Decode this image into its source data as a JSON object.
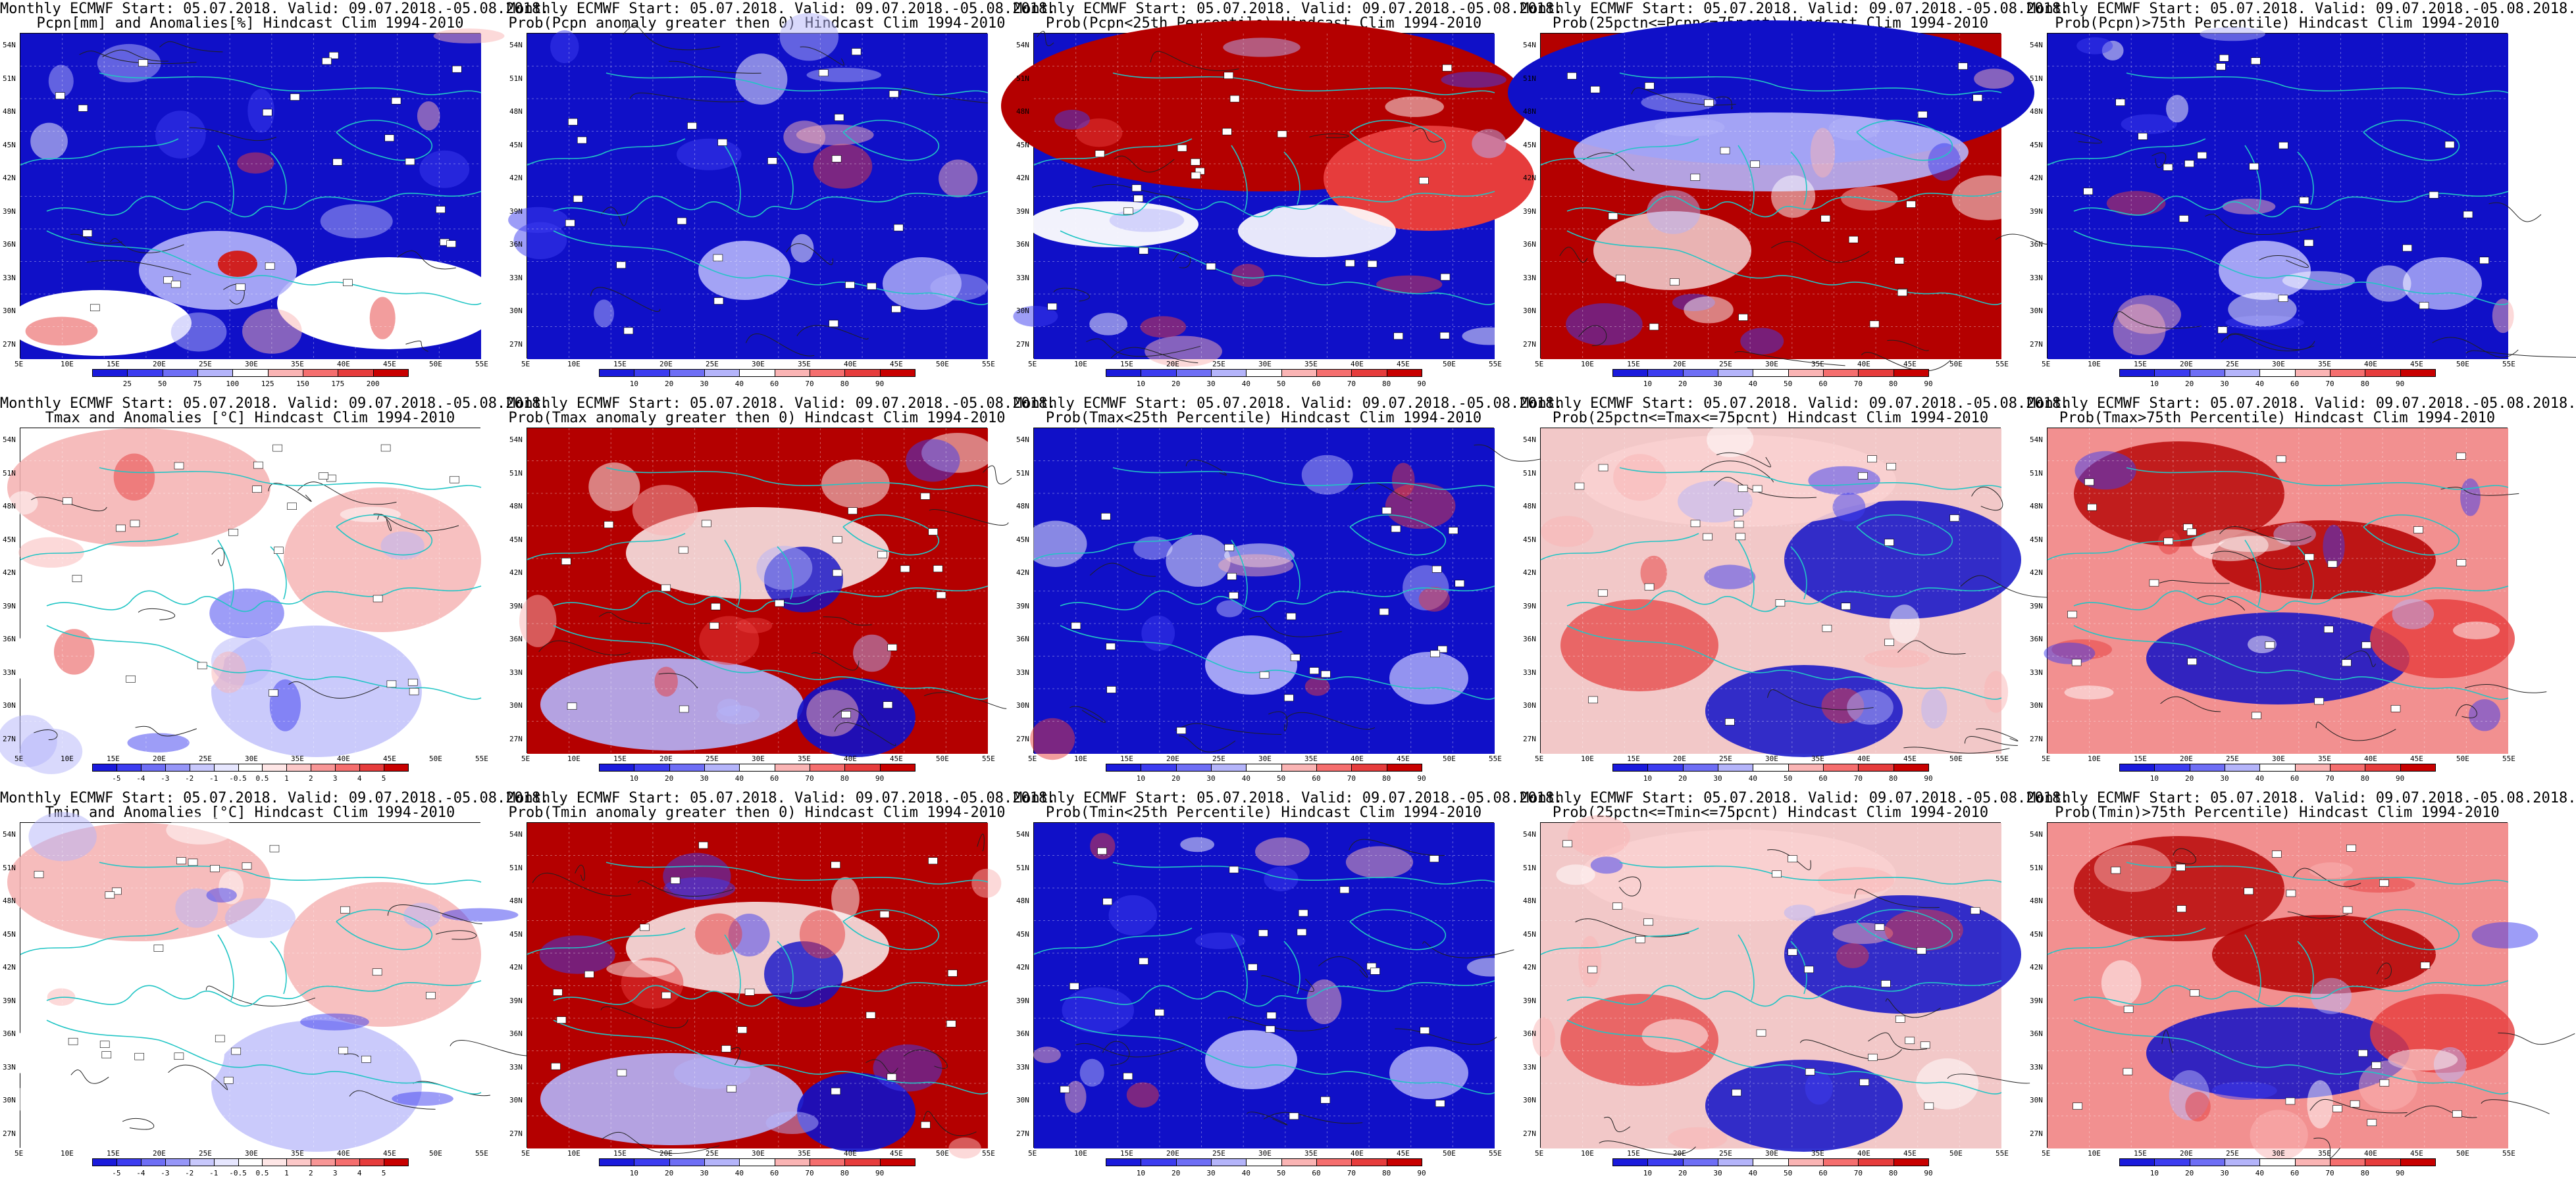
{
  "panels": [
    {
      "id": "r1c1",
      "title1": "Monthly ECMWF Start: 05.07.2018. Valid: 09.07.2018.-05.08.2018.",
      "title2": "Pcpn[mm] and Anomalies[%] Hindcast Clim 1994-2010",
      "scheme": "mostly-blue-white",
      "colorbar": [
        "25",
        "50",
        "75",
        "100",
        "125",
        "150",
        "175",
        "200"
      ],
      "cbar_colors": [
        "#1a1adc",
        "#3c3cf0",
        "#6e6ef5",
        "#b4b4fa",
        "#ffffff",
        "#fab4b4",
        "#f56e6e",
        "#e63c3c",
        "#c80000"
      ]
    },
    {
      "id": "r1c2",
      "title1": "Monthly ECMWF Start: 05.07.2018. Valid: 09.07.2018.-05.08.2018.",
      "title2": "Prob(Pcpn anomaly greater then 0) Hindcast Clim 1994-2010",
      "scheme": "mostly-blue",
      "colorbar": [
        "10",
        "20",
        "30",
        "40",
        "60",
        "70",
        "80",
        "90"
      ],
      "cbar_colors": [
        "#1a1adc",
        "#3c3cf0",
        "#6e6ef5",
        "#b4b4fa",
        "#ffffff",
        "#fab4b4",
        "#f56e6e",
        "#e63c3c",
        "#c80000"
      ]
    },
    {
      "id": "r1c3",
      "title1": "Monthly ECMWF Start: 05.07.2018. Valid: 09.07.2018.-05.08.2018.",
      "title2": "Prob(Pcpn<25th Percentile) Hindcast Clim 1994-2010",
      "scheme": "red-top-blue-bottom",
      "colorbar": [
        "10",
        "20",
        "30",
        "40",
        "50",
        "60",
        "70",
        "80",
        "90"
      ],
      "cbar_colors": [
        "#1a1adc",
        "#3c3cf0",
        "#6e6ef5",
        "#b4b4fa",
        "#ffffff",
        "#fab4b4",
        "#f56e6e",
        "#e63c3c",
        "#c80000"
      ]
    },
    {
      "id": "r1c4",
      "title1": "Monthly ECMWF Start: 05.07.2018. Valid: 09.07.2018.-05.08.2018.",
      "title2": "Prob(25pctn<=Pcpn<=75pcnt) Hindcast Clim 1994-2010",
      "scheme": "blue-top-red-bottom",
      "colorbar": [
        "10",
        "20",
        "30",
        "40",
        "50",
        "60",
        "70",
        "80",
        "90"
      ],
      "cbar_colors": [
        "#1a1adc",
        "#3c3cf0",
        "#6e6ef5",
        "#b4b4fa",
        "#ffffff",
        "#fab4b4",
        "#f56e6e",
        "#e63c3c",
        "#c80000"
      ]
    },
    {
      "id": "r1c5",
      "title1": "Monthly ECMWF Start: 05.07.2018. Valid: 09.07.2018.-05.08.2018.",
      "title2": "Prob(Pcpn)>75th Percentile) Hindcast Clim 1994-2010",
      "scheme": "mostly-blue",
      "colorbar": [
        "10",
        "20",
        "30",
        "40",
        "60",
        "70",
        "80",
        "90"
      ],
      "cbar_colors": [
        "#1a1adc",
        "#3c3cf0",
        "#6e6ef5",
        "#b4b4fa",
        "#ffffff",
        "#fab4b4",
        "#f56e6e",
        "#e63c3c",
        "#c80000"
      ]
    },
    {
      "id": "r2c1",
      "title1": "Monthly ECMWF Start: 05.07.2018. Valid: 09.07.2018.-05.08.2018.",
      "title2": "Tmax and Anomalies [°C] Hindcast Clim 1994-2010",
      "scheme": "light-red-white",
      "colorbar": [
        "-5",
        "-4",
        "-3",
        "-2",
        "-1",
        "-0.5",
        "0.5",
        "1",
        "2",
        "3",
        "4",
        "5"
      ],
      "cbar_colors": [
        "#1a1adc",
        "#3c3cf0",
        "#6e6ef5",
        "#9696f8",
        "#c8c8fc",
        "#e6e6fe",
        "#ffffff",
        "#fee6e6",
        "#fcc8c8",
        "#f89696",
        "#f56e6e",
        "#e63c3c",
        "#c80000"
      ]
    },
    {
      "id": "r2c2",
      "title1": "Monthly ECMWF Start: 05.07.2018. Valid: 09.07.2018.-05.08.2018.",
      "title2": "Prob(Tmax anomaly greater then 0) Hindcast Clim 1994-2010",
      "scheme": "mostly-red",
      "colorbar": [
        "10",
        "20",
        "30",
        "40",
        "60",
        "70",
        "80",
        "90"
      ],
      "cbar_colors": [
        "#1a1adc",
        "#3c3cf0",
        "#6e6ef5",
        "#b4b4fa",
        "#ffffff",
        "#fab4b4",
        "#f56e6e",
        "#e63c3c",
        "#c80000"
      ]
    },
    {
      "id": "r2c3",
      "title1": "Monthly ECMWF Start: 05.07.2018. Valid: 09.07.2018.-05.08.2018.",
      "title2": "Prob(Tmax<25th Percentile) Hindcast Clim 1994-2010",
      "scheme": "mostly-blue",
      "colorbar": [
        "10",
        "20",
        "30",
        "40",
        "50",
        "60",
        "70",
        "80",
        "90"
      ],
      "cbar_colors": [
        "#1a1adc",
        "#3c3cf0",
        "#6e6ef5",
        "#b4b4fa",
        "#ffffff",
        "#fab4b4",
        "#f56e6e",
        "#e63c3c",
        "#c80000"
      ]
    },
    {
      "id": "r2c4",
      "title1": "Monthly ECMWF Start: 05.07.2018. Valid: 09.07.2018.-05.08.2018.",
      "title2": "Prob(25pctn<=Tmax<=75pcnt) Hindcast Clim 1994-2010",
      "scheme": "mixed",
      "colorbar": [
        "10",
        "20",
        "30",
        "40",
        "50",
        "60",
        "70",
        "80",
        "90"
      ],
      "cbar_colors": [
        "#1a1adc",
        "#3c3cf0",
        "#6e6ef5",
        "#b4b4fa",
        "#ffffff",
        "#fab4b4",
        "#f56e6e",
        "#e63c3c",
        "#c80000"
      ]
    },
    {
      "id": "r2c5",
      "title1": "Monthly ECMWF Start: 05.07.2018. Valid: 09.07.2018.-05.08.2018.",
      "title2": "Prob(Tmax>75th Percentile) Hindcast Clim 1994-2010",
      "scheme": "mixed-red",
      "colorbar": [
        "10",
        "20",
        "30",
        "40",
        "60",
        "70",
        "80",
        "90"
      ],
      "cbar_colors": [
        "#1a1adc",
        "#3c3cf0",
        "#6e6ef5",
        "#b4b4fa",
        "#ffffff",
        "#fab4b4",
        "#f56e6e",
        "#e63c3c",
        "#c80000"
      ]
    },
    {
      "id": "r3c1",
      "title1": "Monthly ECMWF Start: 05.07.2018. Valid: 09.07.2018.-05.08.2018.",
      "title2": "Tmin and Anomalies [°C] Hindcast Clim 1994-2010",
      "scheme": "light-red-white",
      "colorbar": [
        "-5",
        "-4",
        "-3",
        "-2",
        "-1",
        "-0.5",
        "0.5",
        "1",
        "2",
        "3",
        "4",
        "5"
      ],
      "cbar_colors": [
        "#1a1adc",
        "#3c3cf0",
        "#6e6ef5",
        "#9696f8",
        "#c8c8fc",
        "#e6e6fe",
        "#ffffff",
        "#fee6e6",
        "#fcc8c8",
        "#f89696",
        "#f56e6e",
        "#e63c3c",
        "#c80000"
      ]
    },
    {
      "id": "r3c2",
      "title1": "Monthly ECMWF Start: 05.07.2018. Valid: 09.07.2018.-05.08.2018.",
      "title2": "Prob(Tmin anomaly greater then 0) Hindcast Clim 1994-2010",
      "scheme": "mostly-red",
      "colorbar": [
        "10",
        "20",
        "30",
        "40",
        "60",
        "70",
        "80",
        "90"
      ],
      "cbar_colors": [
        "#1a1adc",
        "#3c3cf0",
        "#6e6ef5",
        "#b4b4fa",
        "#ffffff",
        "#fab4b4",
        "#f56e6e",
        "#e63c3c",
        "#c80000"
      ]
    },
    {
      "id": "r3c3",
      "title1": "Monthly ECMWF Start: 05.07.2018. Valid: 09.07.2018.-05.08.2018.",
      "title2": "Prob(Tmin<25th Percentile) Hindcast Clim 1994-2010",
      "scheme": "mostly-blue",
      "colorbar": [
        "10",
        "20",
        "30",
        "40",
        "50",
        "60",
        "70",
        "80",
        "90"
      ],
      "cbar_colors": [
        "#1a1adc",
        "#3c3cf0",
        "#6e6ef5",
        "#b4b4fa",
        "#ffffff",
        "#fab4b4",
        "#f56e6e",
        "#e63c3c",
        "#c80000"
      ]
    },
    {
      "id": "r3c4",
      "title1": "Monthly ECMWF Start: 05.07.2018. Valid: 09.07.2018.-05.08.2018.",
      "title2": "Prob(25pctn<=Tmin<=75pcnt) Hindcast Clim 1994-2010",
      "scheme": "mixed",
      "colorbar": [
        "10",
        "20",
        "30",
        "40",
        "50",
        "60",
        "70",
        "80",
        "90"
      ],
      "cbar_colors": [
        "#1a1adc",
        "#3c3cf0",
        "#6e6ef5",
        "#b4b4fa",
        "#ffffff",
        "#fab4b4",
        "#f56e6e",
        "#e63c3c",
        "#c80000"
      ]
    },
    {
      "id": "r3c5",
      "title1": "Monthly ECMWF Start: 05.07.2018. Valid: 09.07.2018.-05.08.2018.",
      "title2": "Prob(Tmin)>75th Percentile) Hindcast Clim 1994-2010",
      "scheme": "mixed-red",
      "colorbar": [
        "10",
        "20",
        "30",
        "40",
        "60",
        "70",
        "80",
        "90"
      ],
      "cbar_colors": [
        "#1a1adc",
        "#3c3cf0",
        "#6e6ef5",
        "#b4b4fa",
        "#ffffff",
        "#fab4b4",
        "#f56e6e",
        "#e63c3c",
        "#c80000"
      ]
    }
  ],
  "lat_labels": [
    "54N",
    "51N",
    "48N",
    "45N",
    "42N",
    "39N",
    "36N",
    "33N",
    "30N",
    "27N"
  ],
  "lon_labels": [
    "5E",
    "10E",
    "15E",
    "20E",
    "25E",
    "30E",
    "35E",
    "40E",
    "45E",
    "50E",
    "55E"
  ],
  "colors": {
    "deep_blue": "#1010c8",
    "blue": "#3c3cf0",
    "light_blue": "#b4b4fa",
    "white": "#ffffff",
    "light_red": "#fab4b4",
    "red": "#e63c3c",
    "deep_red": "#b40000",
    "coast": "#22c5c5",
    "contour": "#202020"
  }
}
